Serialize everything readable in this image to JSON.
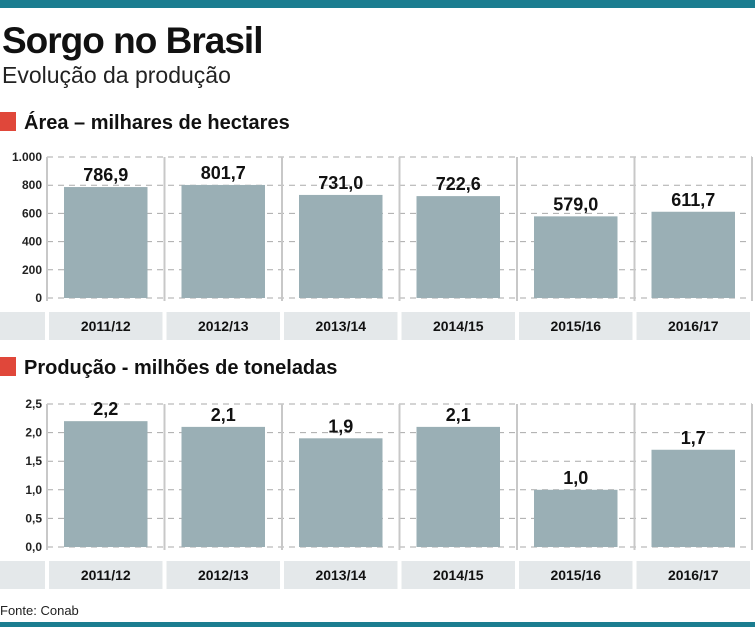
{
  "header": {
    "title": "Sorgo no Brasil",
    "subtitle": "Evolução da produção"
  },
  "colors": {
    "accent_bar": "#1b7d90",
    "bar": "#9aafb5",
    "marker": "#e0473a",
    "category_band": "#e4e8ea"
  },
  "source": "Fonte: Conab",
  "chart_data": [
    {
      "type": "bar",
      "title": "Área – milhares de hectares",
      "categories": [
        "2011/12",
        "2012/13",
        "2013/14",
        "2014/15",
        "2015/16",
        "2016/17"
      ],
      "values": [
        786.9,
        801.7,
        731.0,
        722.6,
        579.0,
        611.7
      ],
      "data_labels": [
        "786,9",
        "801,7",
        "731,0",
        "722,6",
        "579,0",
        "611,7"
      ],
      "ylim": [
        0,
        1000
      ],
      "yticks": [
        0,
        200,
        400,
        600,
        800,
        1000
      ],
      "ytick_labels": [
        "0",
        "200",
        "400",
        "600",
        "800",
        "1.000"
      ],
      "grid": true
    },
    {
      "type": "bar",
      "title": "Produção - milhões de toneladas",
      "categories": [
        "2011/12",
        "2012/13",
        "2013/14",
        "2014/15",
        "2015/16",
        "2016/17"
      ],
      "values": [
        2.2,
        2.1,
        1.9,
        2.1,
        1.0,
        1.7
      ],
      "data_labels": [
        "2,2",
        "2,1",
        "1,9",
        "2,1",
        "1,0",
        "1,7"
      ],
      "ylim": [
        0,
        2.5
      ],
      "yticks": [
        0,
        0.5,
        1.0,
        1.5,
        2.0,
        2.5
      ],
      "ytick_labels": [
        "0,0",
        "0,5",
        "1,0",
        "1,5",
        "2,0",
        "2,5"
      ],
      "grid": true
    }
  ]
}
